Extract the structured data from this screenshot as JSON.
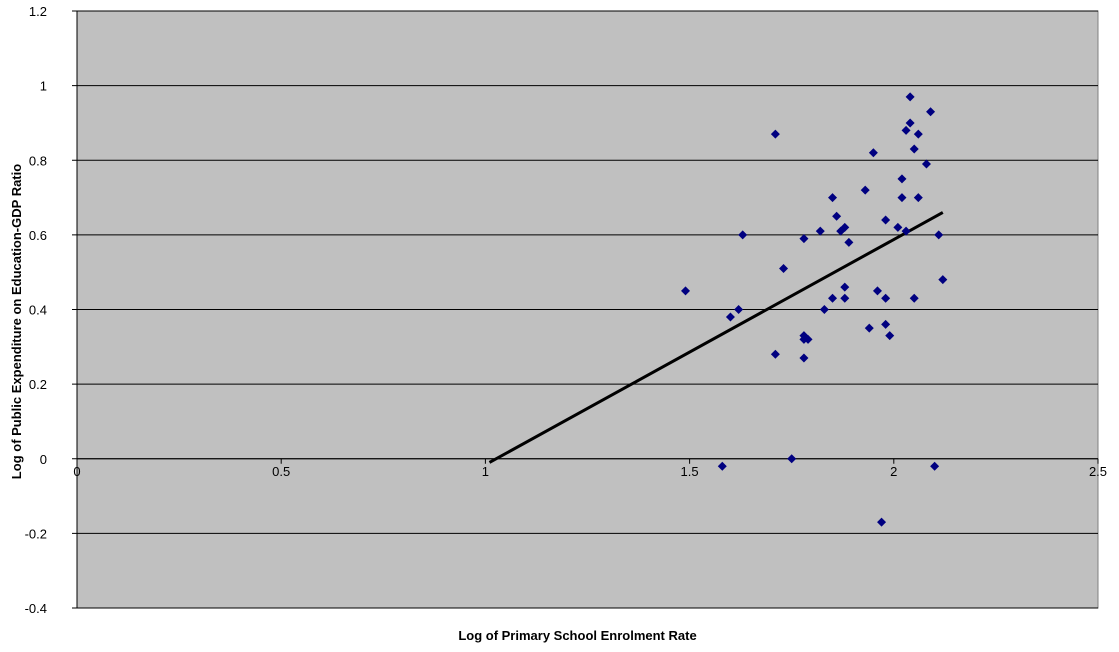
{
  "chart_data": {
    "type": "scatter",
    "title": "",
    "xlabel": "Log of Primary School Enrolment Rate",
    "ylabel": "Log of Public Expenditure on Education-GDP Ratio",
    "xlim": [
      0,
      2.5
    ],
    "ylim": [
      -0.4,
      1.2
    ],
    "x_ticks": [
      "0",
      "0.5",
      "1",
      "1.5",
      "2",
      "2.5"
    ],
    "y_ticks": [
      "1.2",
      "1",
      "0.8",
      "0.6",
      "0.4",
      "0.2",
      "0",
      "-0.2",
      "-0.4"
    ],
    "grid": "horizontal",
    "legend": "none",
    "plot_background": "#c0c0c0",
    "marker_color": "#000080",
    "trendline_color": "#000000",
    "points": [
      [
        1.49,
        0.45
      ],
      [
        1.58,
        -0.02
      ],
      [
        1.6,
        0.38
      ],
      [
        1.62,
        0.4
      ],
      [
        1.63,
        0.6
      ],
      [
        1.71,
        0.87
      ],
      [
        1.71,
        0.28
      ],
      [
        1.73,
        0.51
      ],
      [
        1.75,
        0.0
      ],
      [
        1.78,
        0.59
      ],
      [
        1.78,
        0.33
      ],
      [
        1.78,
        0.32
      ],
      [
        1.79,
        0.32
      ],
      [
        1.78,
        0.27
      ],
      [
        1.82,
        0.61
      ],
      [
        1.83,
        0.4
      ],
      [
        1.85,
        0.7
      ],
      [
        1.85,
        0.43
      ],
      [
        1.86,
        0.65
      ],
      [
        1.87,
        0.61
      ],
      [
        1.88,
        0.62
      ],
      [
        1.88,
        0.46
      ],
      [
        1.88,
        0.43
      ],
      [
        1.89,
        0.58
      ],
      [
        1.93,
        0.72
      ],
      [
        1.94,
        0.35
      ],
      [
        1.95,
        0.82
      ],
      [
        1.96,
        0.45
      ],
      [
        1.97,
        -0.17
      ],
      [
        1.98,
        0.64
      ],
      [
        1.98,
        0.43
      ],
      [
        1.98,
        0.36
      ],
      [
        1.99,
        0.33
      ],
      [
        2.01,
        0.62
      ],
      [
        2.02,
        0.7
      ],
      [
        2.02,
        0.75
      ],
      [
        2.03,
        0.61
      ],
      [
        2.03,
        0.88
      ],
      [
        2.04,
        0.9
      ],
      [
        2.04,
        0.97
      ],
      [
        2.05,
        0.83
      ],
      [
        2.05,
        0.43
      ],
      [
        2.06,
        0.87
      ],
      [
        2.06,
        0.7
      ],
      [
        2.08,
        0.79
      ],
      [
        2.09,
        0.93
      ],
      [
        2.1,
        -0.02
      ],
      [
        2.11,
        0.6
      ],
      [
        2.12,
        0.48
      ]
    ],
    "trendline": [
      [
        1.01,
        -0.01
      ],
      [
        2.12,
        0.66
      ]
    ]
  }
}
